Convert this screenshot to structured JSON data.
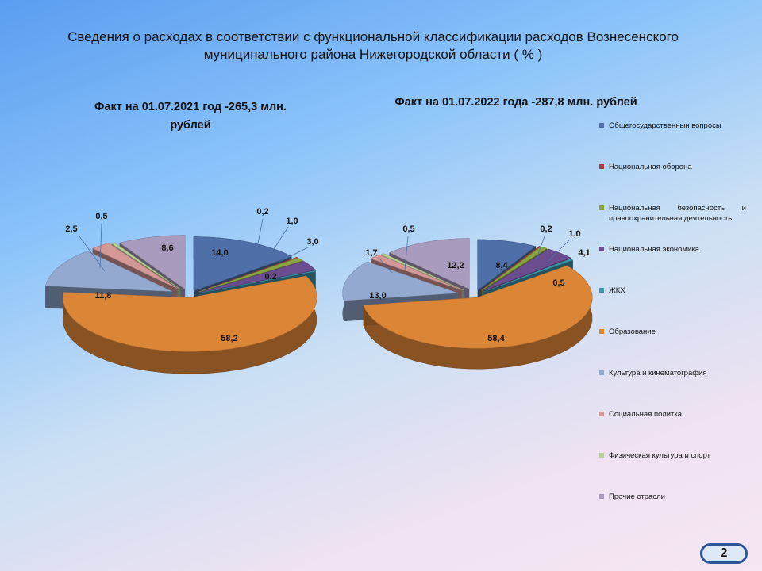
{
  "title": "Сведения о расходах в соответствии с функциональной классификации расходов Вознесенского муниципального района Нижегородской области ( % )",
  "page_number": "2",
  "chart_data": [
    {
      "type": "pie",
      "title": "Факт на 01.07.2021 год -265,3 млн. рублей",
      "categories": [
        "Общегосударственнын вопросы",
        "Национальная оборона",
        "Национальная  безопасность  и правоохранительная деятельность",
        "Национальная экономика",
        "ЖКХ",
        "Образование",
        "Культура и кинематография",
        "Социальная политка",
        "Физическая культура и спорт",
        "Прочие отрасли"
      ],
      "values": [
        14.0,
        0.2,
        1.0,
        3.0,
        0.2,
        58.2,
        11.8,
        2.5,
        0.5,
        8.6
      ],
      "labels": [
        "14,0",
        "0,2",
        "1,0",
        "3,0",
        "0,2",
        "58,2",
        "11,8",
        "2,5",
        "0,5",
        "8,6"
      ]
    },
    {
      "type": "pie",
      "title": "Факт на 01.07.2022 года -287,8 млн. рублей",
      "categories": [
        "Общегосударственнын вопросы",
        "Национальная оборона",
        "Национальная  безопасность  и правоохранительная деятельность",
        "Национальная экономика",
        "ЖКХ",
        "Образование",
        "Культура и кинематография",
        "Социальная политка",
        "Физическая культура и спорт",
        "Прочие отрасли"
      ],
      "values": [
        8.4,
        0.2,
        1.0,
        4.1,
        0.5,
        58.4,
        13.0,
        1.7,
        0.5,
        12.2
      ],
      "labels": [
        "8,4",
        "0,2",
        "1,0",
        "4,1",
        "0,5",
        "58,4",
        "13,0",
        "1,7",
        "0,5",
        "12,2"
      ]
    }
  ],
  "legend": [
    {
      "label": "Общегосударственнын вопросы",
      "color": "#4f6fa8"
    },
    {
      "label": "Национальная оборона",
      "color": "#a0443f"
    },
    {
      "label": "Национальная  безопасность  и правоохранительная деятельность",
      "color": "#8aa53f"
    },
    {
      "label": "Национальная экономика",
      "color": "#6b4d8f"
    },
    {
      "label": "ЖКХ",
      "color": "#3d96ad"
    },
    {
      "label": "Образование",
      "color": "#db8537"
    },
    {
      "label": "Культура и кинематография",
      "color": "#93a9cf"
    },
    {
      "label": "Социальная политка",
      "color": "#d49896"
    },
    {
      "label": "Физическая культура и спорт",
      "color": "#b9cf96"
    },
    {
      "label": "Прочие отрасли",
      "color": "#a99bbd"
    }
  ]
}
